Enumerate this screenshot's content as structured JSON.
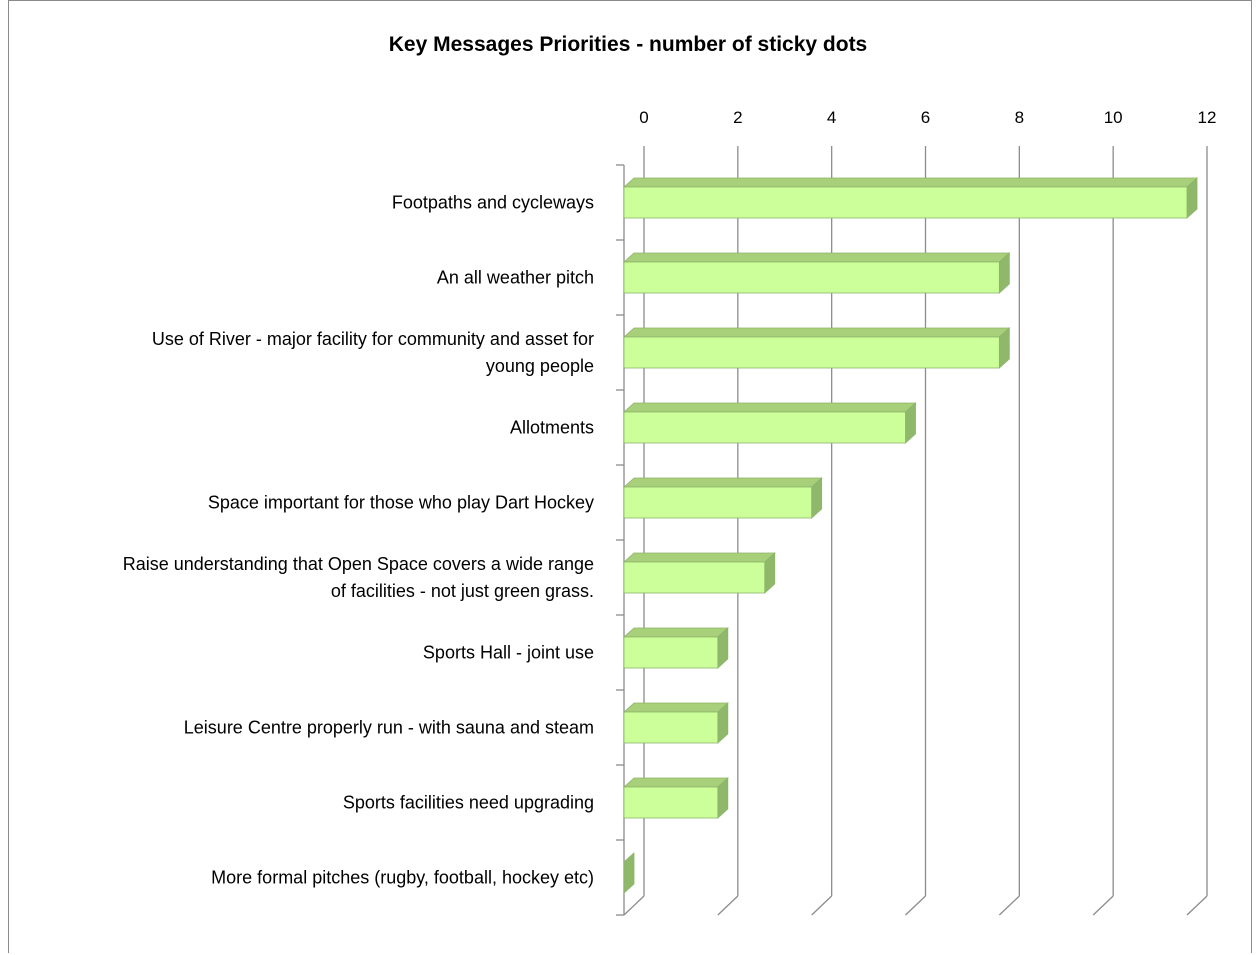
{
  "chart_data": {
    "type": "bar",
    "orientation": "horizontal",
    "three_d": true,
    "title": "Key Messages Priorities - number of sticky dots",
    "xlabel": "",
    "ylabel": "",
    "xlim": [
      0,
      12
    ],
    "x_ticks": [
      "0",
      "2",
      "4",
      "6",
      "8",
      "10",
      "12"
    ],
    "grid": true,
    "legend": "none",
    "categories": [
      [
        "Footpaths and cycleways"
      ],
      [
        "An all weather pitch"
      ],
      [
        "Use of River - major facility for community and asset for",
        "young people"
      ],
      [
        "Allotments"
      ],
      [
        "Space important for those who play Dart Hockey"
      ],
      [
        "Raise understanding that Open Space covers a wide range",
        "of facilities - not just green grass."
      ],
      [
        "Sports Hall - joint use"
      ],
      [
        "Leisure Centre properly run - with sauna and steam"
      ],
      [
        "Sports facilities need upgrading"
      ],
      [
        "More formal pitches (rugby, football, hockey etc)"
      ]
    ],
    "values": [
      12,
      8,
      8,
      6,
      4,
      3,
      2,
      2,
      2,
      0
    ],
    "colors": {
      "bar_front": "#ccff99",
      "bar_top": "#a8cf7a",
      "bar_side": "#8fb86a",
      "bar_edge": "#8cb56a",
      "grid": "#8c8c8c",
      "frame": "#8a8a8a"
    }
  }
}
